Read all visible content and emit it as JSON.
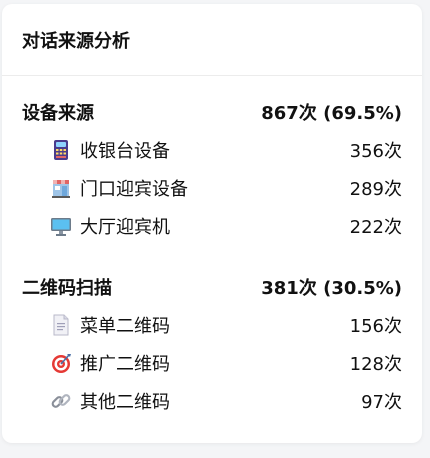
{
  "card": {
    "title": "对话来源分析"
  },
  "device": {
    "label": "设备来源",
    "summary": "867次 (69.5%)",
    "items": [
      {
        "icon": "pos-terminal-icon",
        "label": "收银台设备",
        "count": "356次"
      },
      {
        "icon": "storefront-icon",
        "label": "门口迎宾设备",
        "count": "289次"
      },
      {
        "icon": "monitor-icon",
        "label": "大厅迎宾机",
        "count": "222次"
      }
    ]
  },
  "qrcode": {
    "label": "二维码扫描",
    "summary": "381次 (30.5%)",
    "items": [
      {
        "icon": "document-icon",
        "label": "菜单二维码",
        "count": "156次"
      },
      {
        "icon": "target-icon",
        "label": "推广二维码",
        "count": "128次"
      },
      {
        "icon": "link-icon",
        "label": "其他二维码",
        "count": "97次"
      }
    ]
  }
}
